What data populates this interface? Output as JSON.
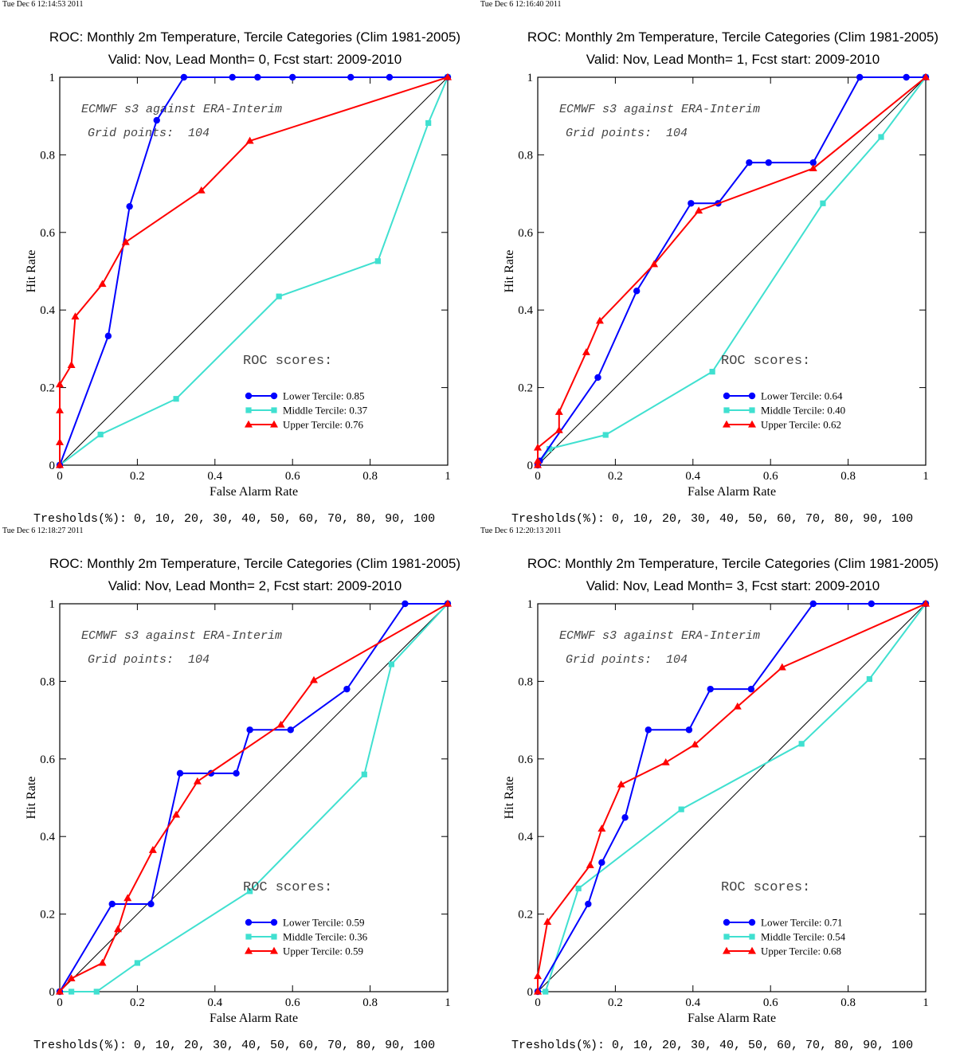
{
  "shared": {
    "title_line1": "ROC: Monthly 2m Temperature, Tercile Categories (Clim 1981-2005)",
    "xlabel": "False Alarm Rate",
    "ylabel": "Hit Rate",
    "annotation1": "ECMWF s3 against ERA-Interim",
    "annotation2": "Grid points:  104",
    "roc_scores_label": "ROC scores:",
    "thresholds": "Tresholds(%): 0, 10, 20, 30, 40, 50, 60, 70, 80, 90, 100",
    "x_ticks": [
      "0",
      "0.2",
      "0.4",
      "0.6",
      "0.8",
      "1"
    ],
    "y_ticks": [
      "0",
      "0.2",
      "0.4",
      "0.6",
      "0.8",
      "1"
    ],
    "colors": {
      "lower": "#0000ff",
      "middle": "#40e0d0",
      "upper": "#ff0000",
      "diagonal": "#000000"
    }
  },
  "panels": [
    {
      "timestamp": "Tue Dec  6 12:14:53 2011",
      "title_line2": "Valid: Nov, Lead Month= 0, Fcst start: 2009-2010"
    },
    {
      "timestamp": "Tue Dec  6 12:16:40 2011",
      "title_line2": "Valid: Nov, Lead Month= 1, Fcst start: 2009-2010"
    },
    {
      "timestamp": "Tue Dec  6 12:18:27 2011",
      "title_line2": "Valid: Nov, Lead Month= 2, Fcst start: 2009-2010"
    },
    {
      "timestamp": "Tue Dec  6 12:20:13 2011",
      "title_line2": "Valid: Nov, Lead Month= 3, Fcst start: 2009-2010"
    }
  ],
  "chart_data": [
    {
      "type": "line",
      "title": "ROC: Monthly 2m Temperature, Tercile Categories (Clim 1981-2005) Valid: Nov, Lead Month= 0, Fcst start: 2009-2010",
      "xlabel": "False Alarm Rate",
      "ylabel": "Hit Rate",
      "xlim": [
        0,
        1
      ],
      "ylim": [
        0,
        1
      ],
      "legend_position": "bottom-right",
      "series": [
        {
          "name": "Lower Tercile: 0.85",
          "marker": "circle",
          "color": "#0000ff",
          "x": [
            0,
            0.125,
            0.18,
            0.25,
            0.32,
            0.445,
            0.51,
            0.6,
            0.75,
            0.85,
            1
          ],
          "y": [
            0,
            0.333,
            0.667,
            0.889,
            1,
            1,
            1,
            1,
            1,
            1,
            1
          ]
        },
        {
          "name": "Middle Tercile: 0.37",
          "marker": "square",
          "color": "#40e0d0",
          "x": [
            0,
            0.105,
            0.3,
            0.565,
            0.82,
            0.95,
            1
          ],
          "y": [
            0,
            0.079,
            0.171,
            0.435,
            0.526,
            0.882,
            1
          ]
        },
        {
          "name": "Upper Tercile: 0.76",
          "marker": "triangle",
          "color": "#ff0000",
          "x": [
            0,
            0,
            0,
            0,
            0.03,
            0.04,
            0.11,
            0.17,
            0.365,
            0.49,
            1
          ],
          "y": [
            0,
            0.059,
            0.141,
            0.208,
            0.258,
            0.383,
            0.467,
            0.575,
            0.708,
            0.836,
            1
          ]
        }
      ]
    },
    {
      "type": "line",
      "title": "ROC: Monthly 2m Temperature, Tercile Categories (Clim 1981-2005) Valid: Nov, Lead Month= 1, Fcst start: 2009-2010",
      "xlabel": "False Alarm Rate",
      "ylabel": "Hit Rate",
      "xlim": [
        0,
        1
      ],
      "ylim": [
        0,
        1
      ],
      "legend_position": "bottom-right",
      "series": [
        {
          "name": "Lower Tercile: 0.64",
          "marker": "circle",
          "color": "#0000ff",
          "x": [
            0,
            0.005,
            0.155,
            0.255,
            0.395,
            0.465,
            0.545,
            0.595,
            0.71,
            0.83,
            0.95,
            1
          ],
          "y": [
            0,
            0.011,
            0.226,
            0.449,
            0.675,
            0.675,
            0.78,
            0.78,
            0.78,
            1,
            1,
            1
          ]
        },
        {
          "name": "Middle Tercile: 0.40",
          "marker": "square",
          "color": "#40e0d0",
          "x": [
            0,
            0.03,
            0.175,
            0.45,
            0.735,
            0.885,
            1
          ],
          "y": [
            0,
            0.042,
            0.078,
            0.241,
            0.675,
            0.846,
            1
          ]
        },
        {
          "name": "Upper Tercile: 0.62",
          "marker": "triangle",
          "color": "#ff0000",
          "x": [
            0,
            0,
            0,
            0.055,
            0.055,
            0.125,
            0.16,
            0.3,
            0.415,
            0.71,
            1
          ],
          "y": [
            0,
            0.011,
            0.045,
            0.09,
            0.137,
            0.291,
            0.372,
            0.518,
            0.656,
            0.765,
            1
          ]
        }
      ]
    },
    {
      "type": "line",
      "title": "ROC: Monthly 2m Temperature, Tercile Categories (Clim 1981-2005) Valid: Nov, Lead Month= 2, Fcst start: 2009-2010",
      "xlabel": "False Alarm Rate",
      "ylabel": "Hit Rate",
      "xlim": [
        0,
        1
      ],
      "ylim": [
        0,
        1
      ],
      "legend_position": "bottom-right",
      "series": [
        {
          "name": "Lower Tercile: 0.59",
          "marker": "circle",
          "color": "#0000ff",
          "x": [
            0,
            0.135,
            0.235,
            0.31,
            0.39,
            0.455,
            0.49,
            0.595,
            0.74,
            0.89,
            1
          ],
          "y": [
            0,
            0.226,
            0.226,
            0.563,
            0.563,
            0.563,
            0.675,
            0.675,
            0.78,
            1,
            1
          ]
        },
        {
          "name": "Middle Tercile: 0.36",
          "marker": "square",
          "color": "#40e0d0",
          "x": [
            0,
            0.03,
            0.095,
            0.2,
            0.49,
            0.785,
            0.855,
            1
          ],
          "y": [
            0,
            0,
            0,
            0.074,
            0.259,
            0.56,
            0.844,
            1
          ]
        },
        {
          "name": "Upper Tercile: 0.59",
          "marker": "triangle",
          "color": "#ff0000",
          "x": [
            0,
            0.03,
            0.11,
            0.15,
            0.175,
            0.24,
            0.3,
            0.355,
            0.57,
            0.655,
            1
          ],
          "y": [
            0,
            0.034,
            0.074,
            0.161,
            0.241,
            0.365,
            0.456,
            0.542,
            0.688,
            0.803,
            1
          ]
        }
      ]
    },
    {
      "type": "line",
      "title": "ROC: Monthly 2m Temperature, Tercile Categories (Clim 1981-2005) Valid: Nov, Lead Month= 3, Fcst start: 2009-2010",
      "xlabel": "False Alarm Rate",
      "ylabel": "Hit Rate",
      "xlim": [
        0,
        1
      ],
      "ylim": [
        0,
        1
      ],
      "legend_position": "bottom-right",
      "series": [
        {
          "name": "Lower Tercile: 0.71",
          "marker": "circle",
          "color": "#0000ff",
          "x": [
            0,
            0.13,
            0.165,
            0.225,
            0.285,
            0.39,
            0.445,
            0.55,
            0.71,
            0.86,
            1
          ],
          "y": [
            0,
            0.226,
            0.333,
            0.449,
            0.675,
            0.675,
            0.78,
            0.78,
            1,
            1,
            1
          ]
        },
        {
          "name": "Middle Tercile: 0.54",
          "marker": "square",
          "color": "#40e0d0",
          "x": [
            0,
            0.02,
            0.105,
            0.37,
            0.68,
            0.855,
            1
          ],
          "y": [
            0,
            0,
            0.266,
            0.47,
            0.639,
            0.806,
            1
          ]
        },
        {
          "name": "Upper Tercile: 0.68",
          "marker": "triangle",
          "color": "#ff0000",
          "x": [
            0,
            0,
            0.025,
            0.135,
            0.165,
            0.215,
            0.33,
            0.405,
            0.515,
            0.63,
            1
          ],
          "y": [
            0,
            0.04,
            0.18,
            0.326,
            0.42,
            0.534,
            0.591,
            0.637,
            0.735,
            0.836,
            1
          ]
        }
      ]
    }
  ]
}
